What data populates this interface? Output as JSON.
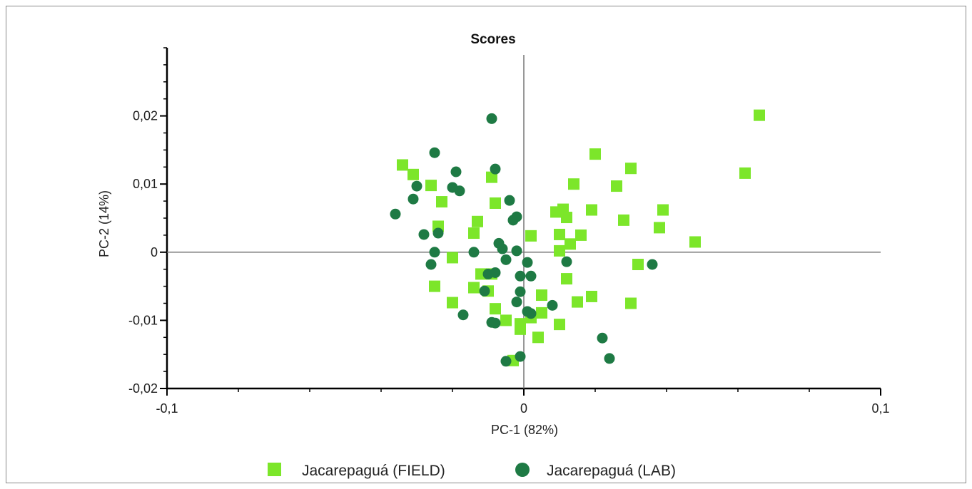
{
  "chart_data": {
    "type": "scatter",
    "title": "Scores",
    "xlabel": "PC-1 (82%)",
    "ylabel": "PC-2 (14%)",
    "xlim": [
      -0.1,
      0.1
    ],
    "ylim": [
      -0.02,
      0.03
    ],
    "x_ticks": [
      {
        "value": -0.1,
        "label": "-0,1"
      },
      {
        "value": 0,
        "label": "0"
      },
      {
        "value": 0.1,
        "label": "0,1"
      }
    ],
    "y_ticks": [
      {
        "value": 0.02,
        "label": "0,02"
      },
      {
        "value": 0.01,
        "label": "0,01"
      },
      {
        "value": 0,
        "label": "0"
      },
      {
        "value": -0.01,
        "label": "-0,01"
      },
      {
        "value": -0.02,
        "label": "-0,02"
      }
    ],
    "grid": false,
    "zero_lines": true,
    "legend_position": "bottom",
    "series": [
      {
        "name": "Jacarepaguá (FIELD)",
        "marker": "square",
        "color": "#7CE62A",
        "points": [
          [
            0.066,
            0.0201
          ],
          [
            0.062,
            0.0116
          ],
          [
            0.02,
            0.0144
          ],
          [
            0.03,
            0.0123
          ],
          [
            0.014,
            0.01
          ],
          [
            0.026,
            0.0097
          ],
          [
            0.039,
            0.0062
          ],
          [
            0.019,
            0.0062
          ],
          [
            0.038,
            0.0036
          ],
          [
            0.028,
            0.0047
          ],
          [
            0.048,
            0.0015
          ],
          [
            0.009,
            0.0059
          ],
          [
            0.011,
            0.0063
          ],
          [
            0.012,
            0.0051
          ],
          [
            0.01,
            0.0026
          ],
          [
            0.016,
            0.0025
          ],
          [
            0.013,
            0.0012
          ],
          [
            0.01,
            0.0002
          ],
          [
            0.002,
            0.0024
          ],
          [
            0.032,
            -0.0018
          ],
          [
            0.012,
            -0.0039
          ],
          [
            0.019,
            -0.0065
          ],
          [
            0.015,
            -0.0073
          ],
          [
            0.03,
            -0.0075
          ],
          [
            0.005,
            -0.0063
          ],
          [
            0.005,
            -0.0089
          ],
          [
            0.01,
            -0.0106
          ],
          [
            0.004,
            -0.0125
          ],
          [
            0.002,
            -0.0096
          ],
          [
            -0.001,
            -0.0113
          ],
          [
            -0.001,
            -0.0105
          ],
          [
            -0.005,
            -0.01
          ],
          [
            -0.008,
            -0.0083
          ],
          [
            -0.003,
            -0.0159
          ],
          [
            -0.034,
            0.0128
          ],
          [
            -0.031,
            0.0114
          ],
          [
            -0.026,
            0.0098
          ],
          [
            -0.023,
            0.0074
          ],
          [
            -0.009,
            0.011
          ],
          [
            -0.008,
            0.0072
          ],
          [
            -0.013,
            0.0045
          ],
          [
            -0.014,
            0.0028
          ],
          [
            -0.024,
            0.0038
          ],
          [
            -0.02,
            -0.0008
          ],
          [
            -0.012,
            -0.0032
          ],
          [
            -0.009,
            -0.0032
          ],
          [
            -0.01,
            -0.0057
          ],
          [
            -0.014,
            -0.0052
          ],
          [
            -0.025,
            -0.005
          ],
          [
            -0.02,
            -0.0074
          ]
        ]
      },
      {
        "name": "Jacarepaguá (LAB)",
        "marker": "circle",
        "color": "#1E7A44",
        "points": [
          [
            -0.009,
            0.0196
          ],
          [
            -0.025,
            0.0146
          ],
          [
            -0.019,
            0.0118
          ],
          [
            -0.008,
            0.0122
          ],
          [
            -0.02,
            0.0095
          ],
          [
            -0.018,
            0.009
          ],
          [
            -0.03,
            0.0097
          ],
          [
            -0.031,
            0.0078
          ],
          [
            -0.036,
            0.0056
          ],
          [
            -0.028,
            0.0026
          ],
          [
            -0.025,
            0.0
          ],
          [
            -0.024,
            0.0028
          ],
          [
            -0.026,
            -0.0018
          ],
          [
            -0.014,
            0.0
          ],
          [
            -0.004,
            0.0076
          ],
          [
            -0.003,
            0.0047
          ],
          [
            -0.002,
            0.0052
          ],
          [
            -0.007,
            0.0013
          ],
          [
            -0.006,
            0.0005
          ],
          [
            -0.002,
            0.0002
          ],
          [
            -0.005,
            -0.0011
          ],
          [
            0.001,
            -0.0015
          ],
          [
            0.002,
            -0.0035
          ],
          [
            -0.001,
            -0.0035
          ],
          [
            -0.01,
            -0.0032
          ],
          [
            -0.008,
            -0.003
          ],
          [
            -0.011,
            -0.0057
          ],
          [
            -0.001,
            -0.0058
          ],
          [
            -0.002,
            -0.0073
          ],
          [
            0.001,
            -0.0087
          ],
          [
            0.002,
            -0.009
          ],
          [
            -0.009,
            -0.0103
          ],
          [
            -0.008,
            -0.0104
          ],
          [
            -0.017,
            -0.0092
          ],
          [
            0.008,
            -0.0078
          ],
          [
            0.012,
            -0.0014
          ],
          [
            0.036,
            -0.0018
          ],
          [
            0.022,
            -0.0126
          ],
          [
            0.024,
            -0.0156
          ],
          [
            -0.001,
            -0.0153
          ],
          [
            -0.005,
            -0.016
          ]
        ]
      }
    ]
  }
}
